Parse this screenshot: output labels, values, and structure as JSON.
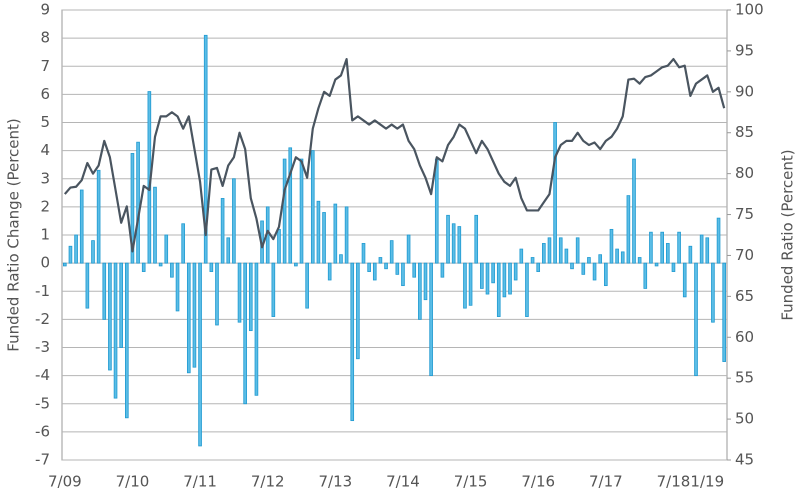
{
  "chart_data": {
    "type": "bar-line",
    "ylabel": "Funded Ratio Change (Percent)",
    "y2label": "Funded Ratio (Percent)",
    "categories": [
      "7/09",
      null,
      null,
      null,
      null,
      null,
      null,
      null,
      null,
      null,
      null,
      null,
      "7/10",
      null,
      null,
      null,
      null,
      null,
      null,
      null,
      null,
      null,
      null,
      null,
      "7/11",
      null,
      null,
      null,
      null,
      null,
      null,
      null,
      null,
      null,
      null,
      null,
      "7/12",
      null,
      null,
      null,
      null,
      null,
      null,
      null,
      null,
      null,
      null,
      null,
      "7/13",
      null,
      null,
      null,
      null,
      null,
      null,
      null,
      null,
      null,
      null,
      null,
      "7/14",
      null,
      null,
      null,
      null,
      null,
      null,
      null,
      null,
      null,
      null,
      null,
      "7/15",
      null,
      null,
      null,
      null,
      null,
      null,
      null,
      null,
      null,
      null,
      null,
      "7/16",
      null,
      null,
      null,
      null,
      null,
      null,
      null,
      null,
      null,
      null,
      null,
      "7/17",
      null,
      null,
      null,
      null,
      null,
      null,
      null,
      null,
      null,
      null,
      null,
      "7/18",
      null,
      null,
      null,
      null,
      null,
      "1/19",
      null,
      null,
      null
    ],
    "series": [
      {
        "type": "bar",
        "color": "#5bbde6",
        "stroke": "#1f9ad1",
        "values": [
          -0.1,
          0.6,
          1.0,
          2.6,
          -1.6,
          0.8,
          3.3,
          -2.0,
          -3.8,
          -4.8,
          -3.0,
          -5.5,
          3.9,
          4.3,
          -0.3,
          6.1,
          2.7,
          -0.1,
          1.0,
          -0.5,
          -1.7,
          1.4,
          -3.9,
          -3.7,
          -6.5,
          8.1,
          -0.3,
          -2.2,
          2.3,
          0.9,
          3.0,
          -2.1,
          -5.0,
          -2.4,
          -4.7,
          1.5,
          2.0,
          -1.9,
          1.2,
          3.7,
          4.1,
          -0.1,
          3.7,
          -1.6,
          4.0,
          2.2,
          1.8,
          -0.6,
          2.1,
          0.3,
          2.0,
          -5.6,
          -3.4,
          0.7,
          -0.3,
          -0.6,
          0.2,
          -0.2,
          0.8,
          -0.4,
          -0.8,
          1.0,
          -0.5,
          -2.0,
          -1.3,
          -4.0,
          3.7,
          -0.5,
          1.7,
          1.4,
          1.3,
          -1.6,
          -1.5,
          1.7,
          -0.9,
          -1.1,
          -0.7,
          -1.9,
          -1.2,
          -1.1,
          -0.6,
          0.5,
          -1.9,
          0.2,
          -0.3,
          0.7,
          0.9,
          5.0,
          0.9,
          0.5,
          -0.2,
          0.9,
          -0.4,
          0.2,
          -0.6,
          0.3,
          -0.8,
          1.2,
          0.5,
          0.4,
          2.4,
          3.7,
          0.2,
          -0.9,
          1.1,
          -0.1,
          1.1,
          0.7,
          -0.3,
          1.1,
          -1.2,
          0.6,
          -4.0,
          1.0,
          0.9,
          -2.1,
          1.6,
          -3.5
        ]
      },
      {
        "type": "line",
        "axis": "y2",
        "color": "#4a5560",
        "values": [
          77.5,
          78.3,
          78.4,
          79.2,
          81.3,
          80.0,
          81.0,
          84.0,
          82.0,
          78.0,
          74.0,
          76.0,
          70.5,
          74.5,
          78.5,
          78.0,
          84.5,
          87.0,
          87.0,
          87.5,
          87.0,
          85.5,
          87.0,
          83.0,
          79.0,
          72.5,
          80.5,
          80.7,
          78.5,
          81.0,
          82.0,
          85.0,
          83.0,
          77.0,
          74.5,
          71.0,
          73.0,
          72.0,
          73.5,
          78.0,
          80.0,
          82.0,
          81.5,
          79.5,
          85.5,
          88.0,
          90.0,
          89.5,
          91.5,
          92.0,
          94.0,
          86.5,
          87.0,
          86.5,
          86.0,
          86.5,
          86.0,
          85.5,
          86.0,
          85.5,
          86.0,
          84.0,
          83.0,
          81.0,
          79.5,
          77.5,
          82.0,
          81.5,
          83.5,
          84.5,
          86.0,
          85.5,
          84.0,
          82.5,
          84.0,
          83.0,
          81.5,
          80.0,
          79.0,
          78.5,
          79.5,
          77.0,
          75.5,
          75.5,
          75.5,
          76.5,
          77.5,
          82.0,
          83.5,
          84.0,
          84.0,
          85.0,
          84.0,
          83.5,
          83.8,
          83.0,
          84.0,
          84.5,
          85.5,
          87.0,
          91.5,
          91.6,
          91.0,
          91.8,
          92.0,
          92.5,
          93.0,
          93.2,
          94.0,
          93.0,
          93.2,
          89.5,
          91.0,
          91.5,
          92.0,
          90.0,
          90.5,
          88.0
        ]
      }
    ],
    "ylim": [
      -7,
      9
    ],
    "yticks": [
      -7,
      -6,
      -5,
      -4,
      -3,
      -2,
      -1,
      0,
      1,
      2,
      3,
      4,
      5,
      6,
      7,
      8,
      9
    ],
    "y2lim": [
      45,
      100
    ],
    "y2ticks": [
      45,
      50,
      55,
      60,
      65,
      70,
      75,
      80,
      85,
      90,
      95,
      100
    ],
    "grid": true
  }
}
